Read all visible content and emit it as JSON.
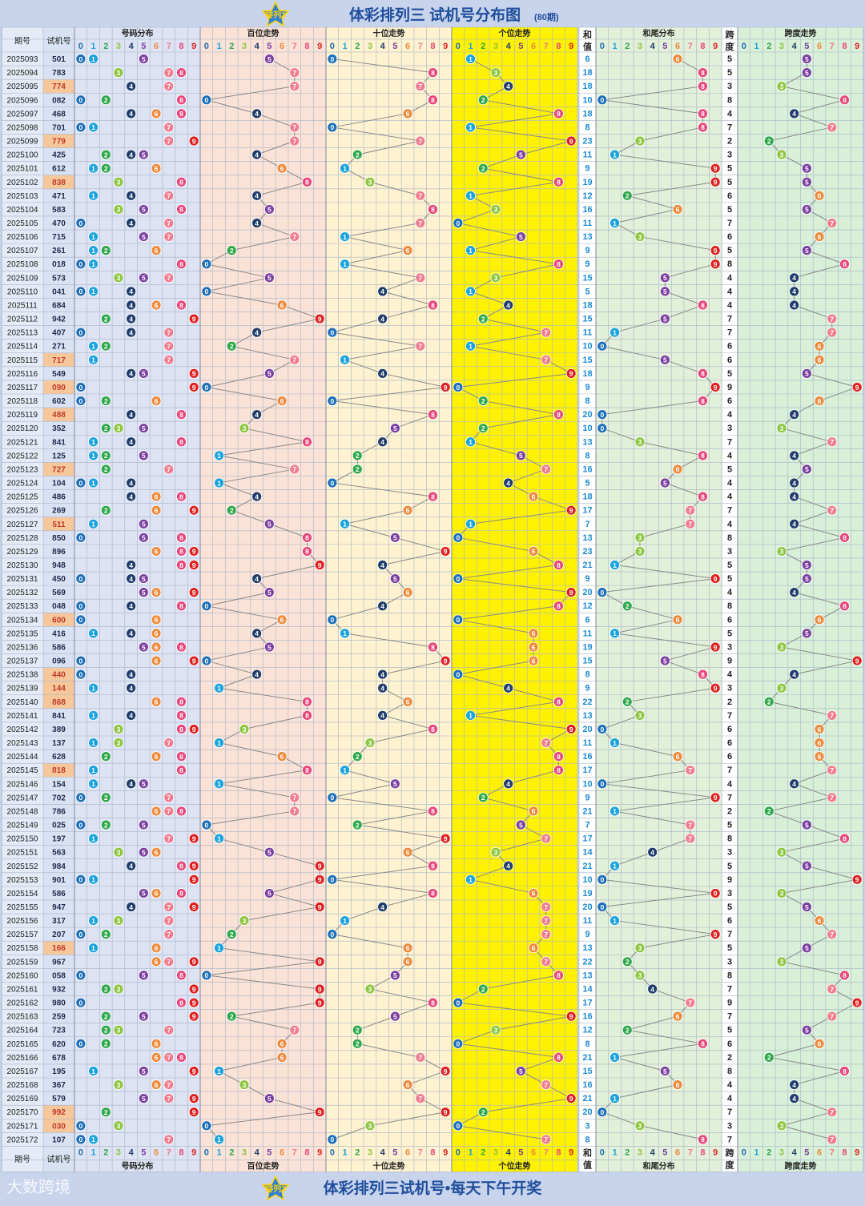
{
  "header": {
    "logo_text": "排列3",
    "title": "体彩排列三 试机号分布图",
    "subtitle": "(80期)"
  },
  "footer": {
    "title": "体彩排列三试机号•每天下午开奖",
    "watermark": "大数跨境"
  },
  "columns": {
    "period": "期号",
    "number": "试机号",
    "dist": "号码分布",
    "hundreds": "百位走势",
    "tens": "十位走势",
    "units": "个位走势",
    "sum_top": "和",
    "sum_bottom": "值",
    "tail": "和尾分布",
    "span_top": "跨",
    "span_bottom": "度",
    "span_trend": "跨度走势"
  },
  "digit_colors": [
    "#1c6fb8",
    "#1aa3dc",
    "#2ea84a",
    "#8dc63f",
    "#1f3c6b",
    "#7b3fa0",
    "#ee8a3c",
    "#f07d8f",
    "#e8457a",
    "#e02020"
  ],
  "colors": {
    "title": "#1f4e9c",
    "period_bg": "#e4ebf6",
    "number_bg": "#d9e2f3",
    "number_highlight": "#f7c79c",
    "dist_bg": "#dde3f3",
    "hundreds_bg": "#fbe2d6",
    "tens_bg": "#fef2d0",
    "units_bg": "#fff200",
    "sum_bg": "#ffffff",
    "tail_bg": "#e2f0d9",
    "span_bg": "#d8f0d8",
    "grid": "#a8b4c8",
    "line": "#8a8a8a"
  },
  "chart_data": {
    "type": "table",
    "periods": [
      "2025093",
      "2025094",
      "2025095",
      "2025096",
      "2025097",
      "2025098",
      "2025099",
      "2025100",
      "2025101",
      "2025102",
      "2025103",
      "2025104",
      "2025105",
      "2025106",
      "2025107",
      "2025108",
      "2025109",
      "2025110",
      "2025111",
      "2025112",
      "2025113",
      "2025114",
      "2025115",
      "2025116",
      "2025117",
      "2025118",
      "2025119",
      "2025120",
      "2025121",
      "2025122",
      "2025123",
      "2025124",
      "2025125",
      "2025126",
      "2025127",
      "2025128",
      "2025129",
      "2025130",
      "2025131",
      "2025132",
      "2025133",
      "2025134",
      "2025135",
      "2025136",
      "2025137",
      "2025138",
      "2025139",
      "2025140",
      "2025141",
      "2025142",
      "2025143",
      "2025144",
      "2025145",
      "2025146",
      "2025147",
      "2025148",
      "2025149",
      "2025150",
      "2025151",
      "2025152",
      "2025153",
      "2025154",
      "2025155",
      "2025156",
      "2025157",
      "2025158",
      "2025159",
      "2025160",
      "2025161",
      "2025162",
      "2025163",
      "2025164",
      "2025165",
      "2025166",
      "2025167",
      "2025168",
      "2025169",
      "2025170",
      "2025171",
      "2025172"
    ],
    "numbers": [
      "501",
      "783",
      "774",
      "082",
      "468",
      "701",
      "779",
      "425",
      "612",
      "838",
      "471",
      "583",
      "470",
      "715",
      "261",
      "018",
      "573",
      "041",
      "684",
      "942",
      "407",
      "271",
      "717",
      "549",
      "090",
      "602",
      "488",
      "352",
      "841",
      "125",
      "727",
      "104",
      "486",
      "269",
      "511",
      "850",
      "896",
      "948",
      "450",
      "569",
      "048",
      "600",
      "416",
      "586",
      "096",
      "440",
      "144",
      "868",
      "841",
      "389",
      "137",
      "628",
      "818",
      "154",
      "702",
      "786",
      "025",
      "197",
      "563",
      "984",
      "901",
      "586",
      "947",
      "317",
      "207",
      "166",
      "967",
      "058",
      "932",
      "980",
      "259",
      "723",
      "620",
      "678",
      "195",
      "367",
      "579",
      "992",
      "030",
      "107"
    ],
    "sums": [
      6,
      18,
      18,
      10,
      18,
      8,
      23,
      11,
      9,
      19,
      12,
      16,
      11,
      13,
      9,
      9,
      15,
      5,
      18,
      15,
      11,
      10,
      15,
      18,
      9,
      8,
      20,
      10,
      13,
      8,
      16,
      5,
      18,
      17,
      7,
      13,
      23,
      21,
      9,
      20,
      12,
      6,
      11,
      19,
      15,
      8,
      9,
      22,
      13,
      20,
      11,
      16,
      17,
      10,
      9,
      21,
      7,
      17,
      14,
      21,
      10,
      19,
      20,
      11,
      9,
      13,
      22,
      13,
      14,
      17,
      16,
      12,
      8,
      21,
      15,
      16,
      21,
      20,
      3,
      8
    ],
    "tails": [
      6,
      8,
      8,
      0,
      8,
      8,
      3,
      1,
      9,
      9,
      2,
      6,
      1,
      3,
      9,
      9,
      5,
      5,
      8,
      5,
      1,
      0,
      5,
      8,
      9,
      8,
      0,
      0,
      3,
      8,
      6,
      5,
      8,
      7,
      7,
      3,
      3,
      1,
      9,
      0,
      2,
      6,
      1,
      9,
      5,
      8,
      9,
      2,
      3,
      0,
      1,
      6,
      7,
      0,
      9,
      1,
      7,
      7,
      4,
      1,
      0,
      9,
      0,
      1,
      9,
      3,
      2,
      3,
      4,
      7,
      6,
      2,
      8,
      1,
      5,
      6,
      1,
      0,
      3,
      8
    ],
    "spans": [
      5,
      5,
      3,
      8,
      4,
      7,
      2,
      3,
      5,
      5,
      6,
      5,
      7,
      6,
      5,
      8,
      4,
      4,
      4,
      7,
      7,
      6,
      6,
      5,
      9,
      6,
      4,
      3,
      7,
      4,
      5,
      4,
      4,
      7,
      4,
      8,
      3,
      5,
      5,
      4,
      8,
      6,
      5,
      3,
      9,
      4,
      3,
      2,
      7,
      6,
      6,
      6,
      7,
      4,
      7,
      2,
      5,
      8,
      3,
      5,
      9,
      3,
      5,
      6,
      7,
      5,
      3,
      8,
      7,
      9,
      7,
      5,
      6,
      2,
      8,
      4,
      4,
      7,
      3,
      7
    ],
    "highlighted": [
      "2025095",
      "2025099",
      "2025102",
      "2025115",
      "2025117",
      "2025119",
      "2025123",
      "2025127",
      "2025134",
      "2025138",
      "2025139",
      "2025140",
      "2025145",
      "2025158",
      "2025170",
      "2025171"
    ],
    "digit_headers": [
      "0",
      "1",
      "2",
      "3",
      "4",
      "5",
      "6",
      "7",
      "8",
      "9"
    ]
  }
}
